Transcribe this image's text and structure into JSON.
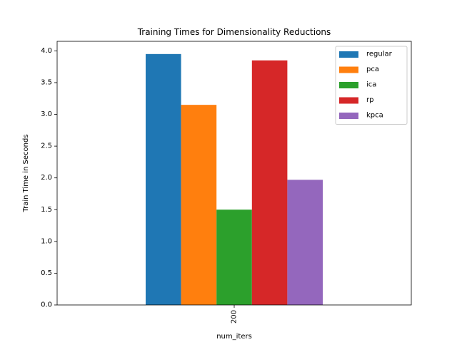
{
  "chart_data": {
    "type": "bar",
    "title": "Training Times for Dimensionality Reductions",
    "xlabel": "num_iters",
    "ylabel": "Train Time in Seconds",
    "categories": [
      "200"
    ],
    "series": [
      {
        "name": "regular",
        "values": [
          3.95
        ],
        "color": "#1f77b4"
      },
      {
        "name": "pca",
        "values": [
          3.15
        ],
        "color": "#ff7f0e"
      },
      {
        "name": "ica",
        "values": [
          1.5
        ],
        "color": "#2ca02c"
      },
      {
        "name": "rp",
        "values": [
          3.85
        ],
        "color": "#d62728"
      },
      {
        "name": "kpca",
        "values": [
          1.97
        ],
        "color": "#9467bd"
      }
    ],
    "ylim": [
      0,
      4.15
    ],
    "yticks": [
      "0.0",
      "0.5",
      "1.0",
      "1.5",
      "2.0",
      "2.5",
      "3.0",
      "3.5",
      "4.0"
    ],
    "grid": false,
    "legend_position": "top-right",
    "xtick_rotation": "vertical"
  }
}
